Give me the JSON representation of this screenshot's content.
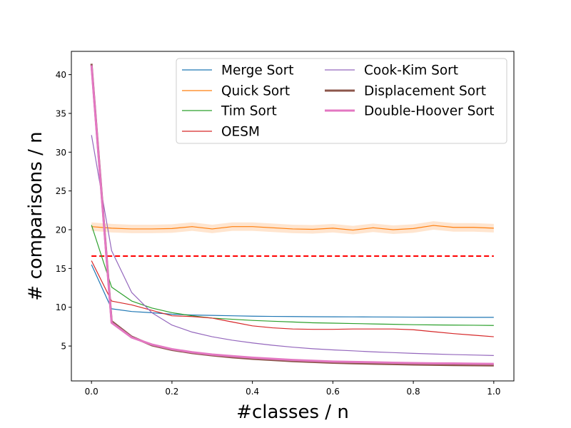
{
  "chart_data": {
    "type": "line",
    "xlabel": "#classes / n",
    "ylabel": "# comparisons / n",
    "xlim": [
      -0.05,
      1.05
    ],
    "ylim": [
      0.5,
      43.0
    ],
    "xticks": [
      0.0,
      0.2,
      0.4,
      0.6,
      0.8,
      1.0
    ],
    "xtick_labels": [
      "0.0",
      "0.2",
      "0.4",
      "0.6",
      "0.8",
      "1.0"
    ],
    "yticks": [
      5,
      10,
      15,
      20,
      25,
      30,
      35,
      40
    ],
    "ytick_labels": [
      "5",
      "10",
      "15",
      "20",
      "25",
      "30",
      "35",
      "40"
    ],
    "grid": false,
    "legend_placement": "top-right",
    "legend_columns": 2,
    "x": [
      0.0,
      0.05,
      0.1,
      0.15,
      0.2,
      0.25,
      0.3,
      0.35,
      0.4,
      0.45,
      0.5,
      0.55,
      0.6,
      0.65,
      0.7,
      0.75,
      0.8,
      0.85,
      0.9,
      0.95,
      1.0
    ],
    "reference_line": {
      "y": 16.6,
      "style": "dashed",
      "color": "#ff0000"
    },
    "series": [
      {
        "name": "Merge Sort",
        "color": "#1f77b4",
        "width": 1.2,
        "values": [
          15.5,
          9.8,
          9.45,
          9.3,
          9.1,
          9.0,
          8.95,
          8.9,
          8.85,
          8.82,
          8.8,
          8.78,
          8.77,
          8.76,
          8.75,
          8.74,
          8.73,
          8.72,
          8.71,
          8.7,
          8.7
        ]
      },
      {
        "name": "Quick Sort",
        "color": "#ff7f0e",
        "width": 1.2,
        "band": 0.55,
        "values": [
          20.4,
          20.2,
          20.1,
          20.1,
          20.15,
          20.4,
          20.1,
          20.4,
          20.4,
          20.25,
          20.1,
          20.05,
          20.2,
          19.95,
          20.25,
          20.0,
          20.15,
          20.55,
          20.3,
          20.3,
          20.2
        ]
      },
      {
        "name": "Tim Sort",
        "color": "#2ca02c",
        "width": 1.2,
        "values": [
          20.6,
          12.6,
          10.8,
          9.9,
          9.3,
          8.9,
          8.6,
          8.45,
          8.3,
          8.2,
          8.1,
          8.0,
          7.95,
          7.9,
          7.85,
          7.8,
          7.75,
          7.72,
          7.7,
          7.68,
          7.65
        ]
      },
      {
        "name": "OESM",
        "color": "#d62728",
        "width": 1.2,
        "values": [
          16.0,
          10.8,
          10.3,
          9.6,
          8.9,
          8.8,
          8.6,
          8.1,
          7.6,
          7.35,
          7.2,
          7.15,
          7.15,
          7.2,
          7.2,
          7.2,
          7.1,
          6.85,
          6.6,
          6.4,
          6.2
        ]
      },
      {
        "name": "Cook-Kim Sort",
        "color": "#9467bd",
        "width": 1.2,
        "values": [
          32.2,
          17.3,
          11.9,
          9.3,
          7.7,
          6.8,
          6.2,
          5.75,
          5.4,
          5.1,
          4.85,
          4.65,
          4.5,
          4.38,
          4.25,
          4.15,
          4.05,
          3.97,
          3.9,
          3.84,
          3.78
        ]
      },
      {
        "name": "Displacement Sort",
        "color": "#8c564b",
        "width": 3,
        "values": [
          41.4,
          8.2,
          6.2,
          5.1,
          4.5,
          4.1,
          3.8,
          3.55,
          3.35,
          3.2,
          3.05,
          2.95,
          2.85,
          2.78,
          2.72,
          2.67,
          2.62,
          2.58,
          2.55,
          2.52,
          2.5
        ]
      },
      {
        "name": "Double-Hoover Sort",
        "color": "#e377c2",
        "width": 3,
        "values": [
          41.2,
          8.0,
          6.1,
          5.2,
          4.6,
          4.2,
          3.9,
          3.7,
          3.5,
          3.35,
          3.2,
          3.1,
          3.0,
          2.95,
          2.9,
          2.85,
          2.8,
          2.77,
          2.75,
          2.72,
          2.7
        ]
      }
    ]
  }
}
